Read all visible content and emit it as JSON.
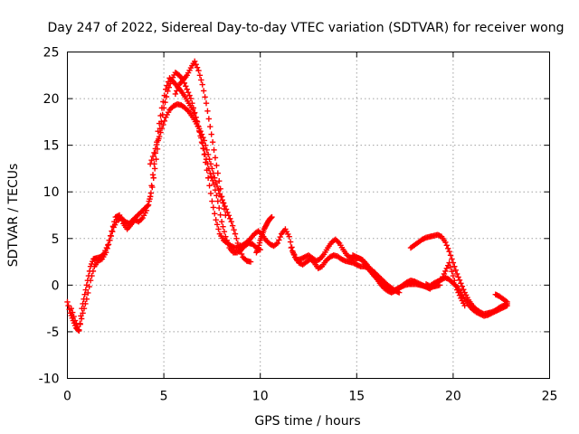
{
  "chart_data": {
    "type": "scatter",
    "title": "Day 247 of 2022, Sidereal Day-to-day VTEC variation (SDTVAR) for receiver wong",
    "xlabel": "GPS time / hours",
    "ylabel": "SDTVAR / TECUs",
    "xlim": [
      0,
      25
    ],
    "ylim": [
      -10,
      25
    ],
    "xticks": [
      0,
      5,
      10,
      15,
      20,
      25
    ],
    "yticks": [
      -10,
      -5,
      0,
      5,
      10,
      15,
      20,
      25
    ],
    "grid": true,
    "marker": "plus",
    "series": [
      {
        "name": "SDTVAR",
        "color": "#ff0000",
        "tracks": [
          {
            "x": [
              0.0,
              0.15,
              0.3,
              0.45,
              0.6,
              0.75,
              0.9,
              1.05,
              1.2,
              1.35,
              1.5,
              1.7,
              1.9,
              2.1,
              2.3,
              2.5,
              2.7,
              2.9,
              3.1,
              3.3,
              3.5,
              3.7,
              3.9,
              4.1,
              4.3,
              4.5,
              4.7,
              4.9,
              5.1,
              5.3,
              5.5,
              5.7,
              5.9,
              6.1,
              6.3,
              6.5,
              6.7,
              6.9,
              7.1,
              7.3,
              7.5,
              7.7,
              7.9,
              8.1,
              8.3,
              8.5,
              8.7,
              8.9,
              9.1,
              9.3,
              9.5,
              9.7,
              9.9,
              10.1,
              10.3,
              10.5,
              10.7,
              10.9,
              11.1,
              11.3,
              11.5,
              11.7,
              11.9,
              12.1,
              12.3,
              12.5,
              12.7,
              12.9,
              13.1,
              13.3,
              13.5,
              13.7,
              13.9,
              14.1,
              14.3,
              14.5,
              14.7,
              14.9,
              15.1,
              15.3,
              15.5,
              15.7,
              15.9,
              16.1,
              16.3,
              16.5,
              16.7,
              16.9,
              17.1,
              17.3,
              17.5,
              17.7,
              17.9,
              18.1,
              18.3,
              18.5,
              18.7,
              18.9,
              19.1,
              19.3
            ],
            "y": [
              -1.8,
              -3.0,
              -3.8,
              -4.6,
              -4.9,
              -2.5,
              -1.0,
              0.5,
              2.0,
              2.8,
              2.9,
              3.0,
              3.4,
              4.3,
              5.8,
              7.3,
              7.5,
              6.6,
              6.0,
              6.5,
              7.0,
              6.8,
              7.2,
              8.0,
              9.5,
              13.0,
              16.5,
              19.0,
              21.0,
              22.2,
              21.8,
              21.3,
              20.8,
              20.2,
              19.5,
              18.8,
              17.6,
              16.0,
              14.0,
              11.5,
              9.0,
              7.0,
              5.5,
              4.8,
              4.5,
              4.2,
              4.0,
              4.1,
              4.3,
              4.6,
              5.0,
              5.5,
              5.8,
              5.4,
              4.8,
              4.4,
              4.2,
              4.5,
              5.5,
              6.0,
              5.2,
              3.5,
              2.7,
              2.8,
              3.0,
              3.2,
              2.9,
              2.6,
              2.8,
              3.3,
              4.0,
              4.6,
              4.9,
              4.5,
              3.8,
              3.2,
              2.9,
              2.8,
              2.9,
              2.7,
              2.1,
              1.5,
              1.0,
              0.6,
              0.2,
              -0.1,
              -0.4,
              -0.6,
              -0.4,
              -0.2,
              0.0,
              0.1,
              0.1,
              0.1,
              0.0,
              -0.1,
              -0.2,
              -0.2,
              -0.1,
              0.0
            ]
          },
          {
            "x": [
              0.2,
              0.4,
              0.6,
              0.8,
              1.0,
              1.2,
              1.4,
              1.6,
              1.8,
              2.0,
              2.2,
              2.4,
              2.6,
              2.8,
              3.0,
              3.2,
              3.4,
              3.6,
              3.8,
              4.0,
              4.2,
              4.4,
              4.6,
              4.8,
              5.0,
              5.2,
              5.4,
              5.6,
              5.8,
              6.0,
              6.2,
              6.4,
              6.6,
              6.8,
              7.0,
              7.2,
              7.4,
              7.6,
              7.8,
              8.0,
              8.2,
              8.4,
              8.6,
              8.8,
              9.0,
              9.2,
              9.4,
              9.6,
              9.8,
              10.0
            ],
            "y": [
              -2.5,
              -3.8,
              -4.8,
              -3.0,
              -1.5,
              0.5,
              2.0,
              2.6,
              2.8,
              3.5,
              4.8,
              6.2,
              7.0,
              7.2,
              6.8,
              6.6,
              7.0,
              7.4,
              7.8,
              8.2,
              8.6,
              10.5,
              13.5,
              16.8,
              19.0,
              20.8,
              22.0,
              22.8,
              22.5,
              22.0,
              21.0,
              20.0,
              18.5,
              17.0,
              15.2,
              13.5,
              12.0,
              10.8,
              9.0,
              6.8,
              5.2,
              4.0,
              3.5,
              3.5,
              3.8,
              4.2,
              4.5,
              4.4,
              4.0,
              3.8
            ]
          },
          {
            "x": [
              4.3,
              4.5,
              4.7,
              4.9,
              5.1,
              5.3,
              5.5,
              5.7,
              5.9,
              6.1,
              6.3,
              6.5,
              6.7,
              6.9,
              7.1,
              7.3,
              7.5,
              7.7,
              7.9,
              8.1,
              8.3,
              8.5,
              8.7,
              8.9,
              9.1,
              9.3,
              9.5
            ],
            "y": [
              13.0,
              14.2,
              15.5,
              16.8,
              18.0,
              18.8,
              19.2,
              19.4,
              19.3,
              19.0,
              18.6,
              18.0,
              17.3,
              16.5,
              15.5,
              14.0,
              12.5,
              11.0,
              9.8,
              8.8,
              7.8,
              6.8,
              5.5,
              4.0,
              3.0,
              2.6,
              2.5
            ]
          },
          {
            "x": [
              5.6,
              5.8,
              6.0,
              6.2,
              6.4,
              6.6,
              6.8,
              7.0,
              7.2,
              7.4,
              7.6,
              7.8,
              8.0,
              8.2
            ],
            "y": [
              20.5,
              21.5,
              22.0,
              22.5,
              23.3,
              24.0,
              23.0,
              21.5,
              19.5,
              17.0,
              14.5,
              12.0,
              9.5,
              7.5
            ]
          },
          {
            "x": [
              9.8,
              9.9,
              10.0,
              10.1,
              10.2,
              10.3,
              10.4,
              10.5,
              10.6
            ],
            "y": [
              3.5,
              4.0,
              4.8,
              5.4,
              6.0,
              6.4,
              6.8,
              7.1,
              7.3
            ]
          },
          {
            "x": [
              11.6,
              11.8,
              12.0,
              12.2,
              12.4,
              12.6,
              12.8,
              13.0,
              13.2,
              13.4,
              13.6,
              13.8,
              14.0,
              14.2,
              14.4,
              14.6,
              14.8,
              15.0,
              15.2,
              15.4,
              15.6,
              15.8,
              16.0,
              16.2,
              16.4,
              16.6,
              16.8,
              17.0,
              17.2
            ],
            "y": [
              4.0,
              3.0,
              2.4,
              2.2,
              2.5,
              2.8,
              2.4,
              1.8,
              2.0,
              2.6,
              3.0,
              3.2,
              3.1,
              2.8,
              2.6,
              2.5,
              2.4,
              2.2,
              2.0,
              2.0,
              1.8,
              1.6,
              1.2,
              0.8,
              0.4,
              0.0,
              -0.3,
              -0.6,
              -0.8
            ]
          },
          {
            "x": [
              14.8,
              15.0,
              15.2,
              15.4,
              15.6,
              15.8,
              16.0,
              16.2,
              16.4,
              16.6,
              16.8,
              17.0,
              17.2,
              17.4,
              17.6,
              17.8,
              18.0,
              18.2,
              18.4,
              18.6,
              18.8,
              19.0,
              19.2,
              19.4,
              19.6,
              19.8,
              20.0,
              20.2,
              20.4,
              20.6
            ],
            "y": [
              3.2,
              3.0,
              2.8,
              2.5,
              2.0,
              1.4,
              0.8,
              0.2,
              -0.3,
              -0.6,
              -0.8,
              -0.6,
              -0.3,
              0.0,
              0.3,
              0.5,
              0.4,
              0.2,
              0.0,
              -0.2,
              -0.4,
              0.0,
              0.4,
              0.6,
              1.5,
              2.4,
              1.0,
              -0.5,
              -1.4,
              -2.2
            ]
          },
          {
            "x": [
              17.8,
              18.0,
              18.2,
              18.4,
              18.6,
              18.8,
              19.0,
              19.2,
              19.4,
              19.6,
              19.8,
              20.0,
              20.2,
              20.4,
              20.6,
              20.8,
              21.0,
              21.2,
              21.4,
              21.6,
              21.8,
              22.0,
              22.2,
              22.4,
              22.6,
              22.8
            ],
            "y": [
              4.0,
              4.3,
              4.6,
              4.9,
              5.1,
              5.2,
              5.3,
              5.4,
              5.2,
              4.6,
              3.6,
              2.4,
              1.2,
              0.2,
              -0.8,
              -1.6,
              -2.2,
              -2.6,
              -2.9,
              -3.1,
              -3.0,
              -2.9,
              -2.7,
              -2.4,
              -2.2,
              -2.0
            ]
          },
          {
            "x": [
              18.6,
              18.8,
              19.0,
              19.2,
              19.4,
              19.6,
              19.8,
              20.0,
              20.2,
              20.4,
              20.6,
              20.8,
              21.0,
              21.2,
              21.4,
              21.6,
              21.8,
              22.0,
              22.2,
              22.4,
              22.6,
              22.8
            ],
            "y": [
              0.1,
              -0.1,
              0.2,
              0.4,
              0.6,
              0.8,
              0.6,
              0.2,
              -0.2,
              -0.8,
              -1.5,
              -2.1,
              -2.6,
              -2.9,
              -3.1,
              -3.3,
              -3.2,
              -3.0,
              -2.8,
              -2.6,
              -2.4,
              -2.2
            ]
          },
          {
            "x": [
              22.2,
              22.4,
              22.6,
              22.8
            ],
            "y": [
              -1.0,
              -1.2,
              -1.5,
              -1.8
            ]
          }
        ]
      }
    ]
  }
}
